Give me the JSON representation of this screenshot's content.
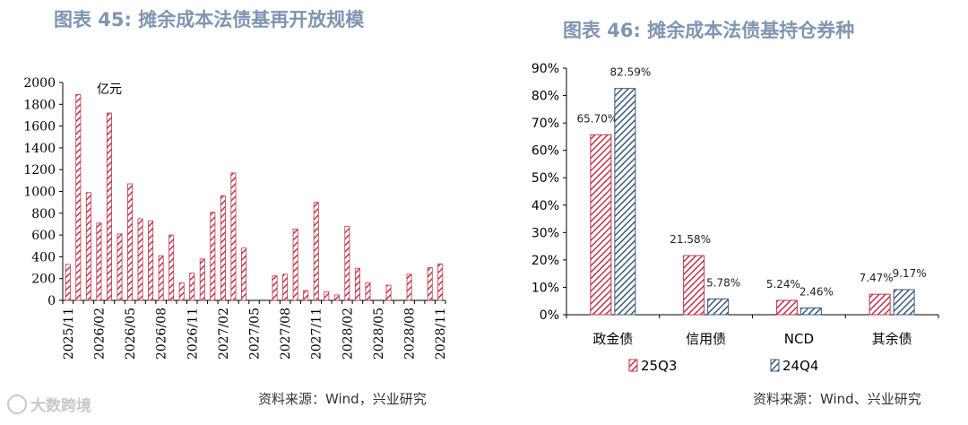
{
  "left": {
    "title": "图表 45: 摊余成本法债基再开放规模",
    "source": "资料来源：Wind，兴业研究",
    "chart_data": {
      "type": "bar",
      "unit_label": "亿元",
      "ylim": [
        0,
        2000
      ],
      "y_ticks": [
        0,
        200,
        400,
        600,
        800,
        1000,
        1200,
        1400,
        1600,
        1800,
        2000
      ],
      "x_tick_labels": [
        "2025/11",
        "2026/02",
        "2026/05",
        "2026/08",
        "2026/11",
        "2027/02",
        "2027/05",
        "2027/08",
        "2027/11",
        "2028/02",
        "2028/05",
        "2028/08",
        "2028/11"
      ],
      "categories": [
        "2025/11",
        "2025/12",
        "2026/01",
        "2026/02",
        "2026/03",
        "2026/04",
        "2026/05",
        "2026/06",
        "2026/07",
        "2026/08",
        "2026/09",
        "2026/10",
        "2026/11",
        "2026/12",
        "2027/01",
        "2027/02",
        "2027/03",
        "2027/04",
        "2027/05",
        "2027/06",
        "2027/07",
        "2027/08",
        "2027/09",
        "2027/10",
        "2027/11",
        "2027/12",
        "2028/01",
        "2028/02",
        "2028/03",
        "2028/04",
        "2028/05",
        "2028/06",
        "2028/07",
        "2028/08",
        "2028/09",
        "2028/10",
        "2028/11"
      ],
      "values": [
        330,
        1890,
        990,
        710,
        1720,
        610,
        1070,
        750,
        730,
        410,
        600,
        160,
        250,
        380,
        810,
        960,
        1170,
        480,
        0,
        0,
        225,
        240,
        655,
        90,
        900,
        80,
        50,
        680,
        295,
        160,
        0,
        140,
        0,
        240,
        0,
        300,
        335
      ],
      "color": "#c0364a",
      "pattern": "diagonal-hatch",
      "grid": false
    }
  },
  "right": {
    "title": "图表 46: 摊余成本法债基持仓券种",
    "source": "资料来源：Wind、兴业研究",
    "chart_data": {
      "type": "bar",
      "categories": [
        "政金债",
        "信用债",
        "NCD",
        "其余债"
      ],
      "ylim": [
        0,
        90
      ],
      "y_ticks": [
        "0%",
        "10%",
        "20%",
        "30%",
        "40%",
        "50%",
        "60%",
        "70%",
        "80%",
        "90%"
      ],
      "series": [
        {
          "name": "25Q3",
          "values": [
            65.7,
            21.58,
            5.24,
            7.47
          ],
          "labels": [
            "65.70%",
            "21.58%",
            "5.24%",
            "7.47%"
          ],
          "color": "#c0364a"
        },
        {
          "name": "24Q4",
          "values": [
            82.59,
            5.78,
            2.46,
            9.17
          ],
          "labels": [
            "82.59%",
            "5.78%",
            "2.46%",
            "9.17%"
          ],
          "color": "#3d5a7c"
        }
      ],
      "legend_position": "bottom",
      "grid": false
    }
  },
  "watermark": "大数跨境"
}
